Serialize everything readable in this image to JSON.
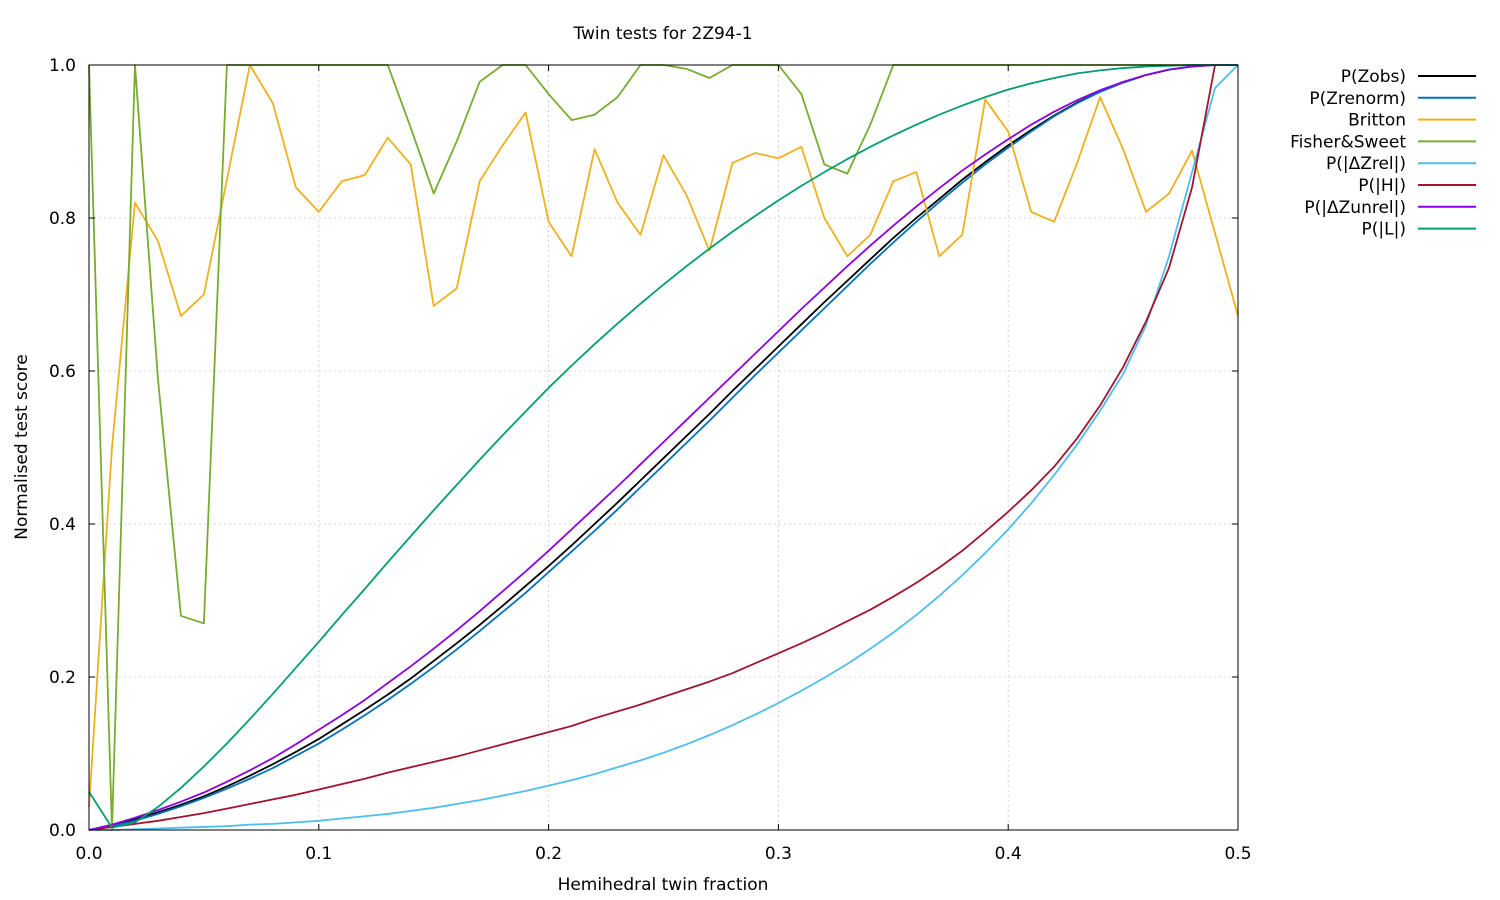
{
  "chart_data": {
    "type": "line",
    "title": "Twin tests for 2Z94-1",
    "xlabel": "Hemihedral twin fraction",
    "ylabel": "Normalised test score",
    "xlim": [
      0,
      0.5
    ],
    "ylim": [
      0,
      1
    ],
    "grid": true,
    "legend_position": "outside-top-right",
    "x_ticks": [
      "0.0",
      "0.1",
      "0.2",
      "0.3",
      "0.4",
      "0.5"
    ],
    "y_ticks": [
      "0.0",
      "0.2",
      "0.4",
      "0.6",
      "0.8",
      "1.0"
    ],
    "x": [
      0.0,
      0.01,
      0.02,
      0.03,
      0.04,
      0.05,
      0.06,
      0.07,
      0.08,
      0.09,
      0.1,
      0.11,
      0.12,
      0.13,
      0.14,
      0.15,
      0.16,
      0.17,
      0.18,
      0.19,
      0.2,
      0.21,
      0.22,
      0.23,
      0.24,
      0.25,
      0.26,
      0.27,
      0.28,
      0.29,
      0.3,
      0.31,
      0.32,
      0.33,
      0.34,
      0.35,
      0.36,
      0.37,
      0.38,
      0.39,
      0.4,
      0.41,
      0.42,
      0.43,
      0.44,
      0.45,
      0.46,
      0.47,
      0.48,
      0.49,
      0.5
    ],
    "series": [
      {
        "name": "P(Zobs)",
        "color": "#000000",
        "values": [
          0.0,
          0.006,
          0.014,
          0.023,
          0.033,
          0.044,
          0.057,
          0.071,
          0.086,
          0.102,
          0.119,
          0.138,
          0.157,
          0.177,
          0.198,
          0.221,
          0.244,
          0.268,
          0.293,
          0.319,
          0.345,
          0.372,
          0.4,
          0.428,
          0.457,
          0.486,
          0.515,
          0.544,
          0.574,
          0.603,
          0.632,
          0.661,
          0.69,
          0.718,
          0.746,
          0.774,
          0.8,
          0.825,
          0.85,
          0.873,
          0.895,
          0.915,
          0.934,
          0.951,
          0.965,
          0.977,
          0.987,
          0.994,
          0.998,
          1.0,
          1.0
        ]
      },
      {
        "name": "P(Zrenorm)",
        "color": "#0072bd",
        "values": [
          0.0,
          0.005,
          0.012,
          0.021,
          0.031,
          0.042,
          0.054,
          0.067,
          0.081,
          0.097,
          0.113,
          0.131,
          0.15,
          0.17,
          0.191,
          0.213,
          0.236,
          0.26,
          0.285,
          0.31,
          0.337,
          0.364,
          0.391,
          0.419,
          0.448,
          0.477,
          0.506,
          0.535,
          0.565,
          0.595,
          0.624,
          0.653,
          0.682,
          0.711,
          0.74,
          0.768,
          0.795,
          0.821,
          0.846,
          0.87,
          0.892,
          0.913,
          0.933,
          0.95,
          0.965,
          0.977,
          0.987,
          0.994,
          0.998,
          1.0,
          1.0
        ]
      },
      {
        "name": "Britton",
        "color": "#edb120",
        "values": [
          0.03,
          0.5,
          0.82,
          0.77,
          0.672,
          0.7,
          0.85,
          1.0,
          0.95,
          0.84,
          0.808,
          0.848,
          0.856,
          0.905,
          0.87,
          0.685,
          0.708,
          0.848,
          0.895,
          0.938,
          0.795,
          0.75,
          0.89,
          0.82,
          0.778,
          0.882,
          0.83,
          0.757,
          0.872,
          0.885,
          0.878,
          0.893,
          0.8,
          0.75,
          0.778,
          0.848,
          0.86,
          0.75,
          0.778,
          0.955,
          0.913,
          0.808,
          0.795,
          0.872,
          0.958,
          0.89,
          0.808,
          0.832,
          0.888,
          0.78,
          0.672
        ]
      },
      {
        "name": "Fisher&Sweet",
        "color": "#77ac30",
        "values": [
          1.0,
          0.0,
          1.0,
          0.59,
          0.28,
          0.27,
          1.0,
          1.0,
          1.0,
          1.0,
          1.0,
          1.0,
          1.0,
          1.0,
          0.918,
          0.832,
          0.9,
          0.978,
          1.0,
          1.0,
          0.962,
          0.928,
          0.935,
          0.958,
          1.0,
          1.0,
          0.995,
          0.983,
          1.0,
          1.0,
          1.0,
          0.962,
          0.87,
          0.858,
          0.922,
          1.0,
          1.0,
          1.0,
          1.0,
          1.0,
          1.0,
          1.0,
          1.0,
          1.0,
          1.0,
          1.0,
          1.0,
          1.0,
          1.0,
          1.0,
          1.0
        ]
      },
      {
        "name": "P(|ΔZrel|)",
        "color": "#4dbeee",
        "values": [
          0.0,
          0.0,
          0.001,
          0.002,
          0.003,
          0.004,
          0.005,
          0.007,
          0.008,
          0.01,
          0.012,
          0.015,
          0.018,
          0.021,
          0.025,
          0.029,
          0.034,
          0.039,
          0.045,
          0.051,
          0.058,
          0.065,
          0.073,
          0.082,
          0.091,
          0.101,
          0.112,
          0.124,
          0.137,
          0.151,
          0.166,
          0.182,
          0.199,
          0.217,
          0.237,
          0.258,
          0.281,
          0.306,
          0.333,
          0.362,
          0.393,
          0.427,
          0.464,
          0.504,
          0.548,
          0.596,
          0.66,
          0.75,
          0.86,
          0.97,
          1.0
        ]
      },
      {
        "name": "P(|H|)",
        "color": "#a2142f",
        "values": [
          0.0,
          0.004,
          0.008,
          0.012,
          0.017,
          0.022,
          0.028,
          0.034,
          0.04,
          0.046,
          0.053,
          0.06,
          0.067,
          0.075,
          0.082,
          0.089,
          0.096,
          0.104,
          0.112,
          0.12,
          0.128,
          0.136,
          0.146,
          0.155,
          0.164,
          0.174,
          0.184,
          0.194,
          0.205,
          0.218,
          0.231,
          0.244,
          0.258,
          0.273,
          0.288,
          0.305,
          0.323,
          0.343,
          0.365,
          0.39,
          0.416,
          0.444,
          0.475,
          0.512,
          0.555,
          0.605,
          0.665,
          0.735,
          0.84,
          1.0,
          1.0
        ]
      },
      {
        "name": "P(|ΔZunrel|)",
        "color": "#8b00e0",
        "values": [
          0.0,
          0.007,
          0.016,
          0.026,
          0.037,
          0.049,
          0.063,
          0.078,
          0.094,
          0.112,
          0.131,
          0.15,
          0.17,
          0.192,
          0.214,
          0.237,
          0.261,
          0.286,
          0.312,
          0.338,
          0.365,
          0.393,
          0.421,
          0.449,
          0.478,
          0.507,
          0.536,
          0.565,
          0.594,
          0.623,
          0.652,
          0.681,
          0.709,
          0.737,
          0.764,
          0.79,
          0.815,
          0.839,
          0.862,
          0.883,
          0.903,
          0.922,
          0.939,
          0.954,
          0.967,
          0.978,
          0.987,
          0.994,
          0.998,
          1.0,
          1.0
        ]
      },
      {
        "name": "P(|L|)",
        "color": "#009e73",
        "values": [
          0.05,
          0.003,
          0.01,
          0.03,
          0.055,
          0.083,
          0.113,
          0.145,
          0.178,
          0.212,
          0.246,
          0.281,
          0.315,
          0.35,
          0.384,
          0.418,
          0.451,
          0.484,
          0.516,
          0.547,
          0.578,
          0.607,
          0.635,
          0.662,
          0.688,
          0.713,
          0.737,
          0.76,
          0.782,
          0.803,
          0.823,
          0.842,
          0.86,
          0.877,
          0.893,
          0.908,
          0.922,
          0.935,
          0.947,
          0.958,
          0.968,
          0.976,
          0.983,
          0.989,
          0.993,
          0.996,
          0.998,
          0.999,
          1.0,
          1.0,
          1.0
        ]
      }
    ]
  }
}
